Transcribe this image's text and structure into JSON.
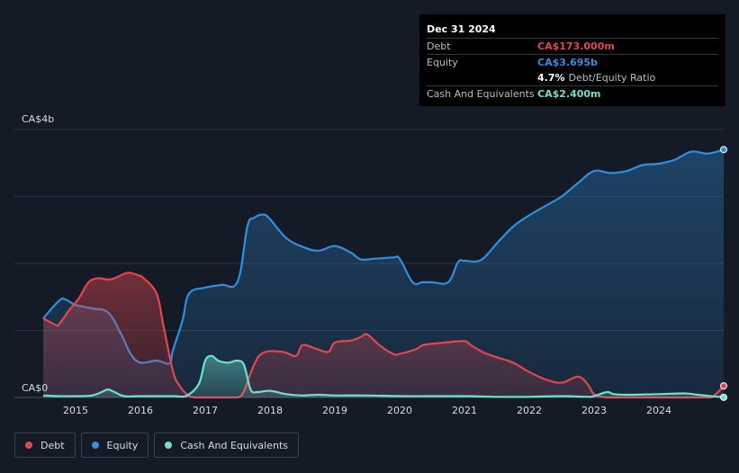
{
  "tooltip": {
    "date": "Dec 31 2024",
    "debt_label": "Debt",
    "debt_value": "CA$173.000m",
    "equity_label": "Equity",
    "equity_value": "CA$3.695b",
    "ratio_value": "4.7%",
    "ratio_label": "Debt/Equity Ratio",
    "cash_label": "Cash And Equivalents",
    "cash_value": "CA$2.400m"
  },
  "legend": {
    "debt": "Debt",
    "equity": "Equity",
    "cash": "Cash And Equivalents"
  },
  "colors": {
    "debt": "#e2474f",
    "equity": "#2f8fe0",
    "cash": "#6ee0cc",
    "background": "#151b26"
  },
  "chart_data": {
    "type": "area",
    "ytick_labels": [
      "CA$4b",
      "CA$0"
    ],
    "ylim": [
      0,
      4.0
    ],
    "y_unit": "CA$ billions",
    "xlim": [
      2014.5,
      2025.0
    ],
    "xtick_labels": [
      "2015",
      "2016",
      "2017",
      "2018",
      "2019",
      "2020",
      "2021",
      "2022",
      "2023",
      "2024"
    ],
    "xtick_values": [
      2015,
      2016,
      2017,
      2018,
      2019,
      2020,
      2021,
      2022,
      2023,
      2024
    ],
    "grid": true,
    "legend_position": "bottom-left",
    "series": [
      {
        "name": "Debt",
        "x": [
          2014.5,
          2014.7,
          2014.75,
          2014.9,
          2015.05,
          2015.2,
          2015.35,
          2015.5,
          2015.6,
          2015.8,
          2015.95,
          2016.05,
          2016.25,
          2016.35,
          2016.5,
          2016.6,
          2016.75,
          2016.85,
          2017.0,
          2017.25,
          2017.5,
          2017.6,
          2017.75,
          2017.9,
          2018.2,
          2018.4,
          2018.5,
          2018.7,
          2018.9,
          2019.0,
          2019.25,
          2019.4,
          2019.5,
          2019.7,
          2019.9,
          2020.0,
          2020.25,
          2020.35,
          2020.5,
          2020.7,
          2021.0,
          2021.1,
          2021.3,
          2021.5,
          2021.75,
          2022.0,
          2022.25,
          2022.5,
          2022.75,
          2022.9,
          2023.0,
          2023.2,
          2023.5,
          2024.0,
          2024.5,
          2024.8,
          2025.0
        ],
        "values": [
          1.18,
          1.08,
          1.1,
          1.3,
          1.48,
          1.72,
          1.78,
          1.76,
          1.78,
          1.86,
          1.83,
          1.78,
          1.55,
          1.1,
          0.4,
          0.18,
          0.02,
          0.0,
          0.0,
          0.0,
          0.0,
          0.1,
          0.48,
          0.67,
          0.68,
          0.62,
          0.78,
          0.73,
          0.68,
          0.82,
          0.85,
          0.9,
          0.94,
          0.77,
          0.65,
          0.65,
          0.72,
          0.78,
          0.8,
          0.82,
          0.84,
          0.78,
          0.67,
          0.6,
          0.52,
          0.38,
          0.27,
          0.22,
          0.31,
          0.2,
          0.05,
          0.0,
          0.0,
          0.0,
          0.0,
          0.0,
          0.173
        ]
      },
      {
        "name": "Equity",
        "x": [
          2014.5,
          2014.75,
          2014.85,
          2015.0,
          2015.25,
          2015.5,
          2015.7,
          2015.85,
          2016.0,
          2016.25,
          2016.45,
          2016.5,
          2016.65,
          2016.75,
          2017.0,
          2017.25,
          2017.5,
          2017.65,
          2017.75,
          2017.9,
          2018.0,
          2018.25,
          2018.5,
          2018.75,
          2019.0,
          2019.25,
          2019.4,
          2019.6,
          2019.9,
          2020.0,
          2020.2,
          2020.35,
          2020.5,
          2020.75,
          2020.9,
          2021.0,
          2021.25,
          2021.5,
          2021.75,
          2022.0,
          2022.25,
          2022.5,
          2022.75,
          2023.0,
          2023.25,
          2023.5,
          2023.75,
          2024.0,
          2024.25,
          2024.5,
          2024.75,
          2025.0
        ],
        "values": [
          1.18,
          1.45,
          1.46,
          1.38,
          1.33,
          1.27,
          0.95,
          0.65,
          0.52,
          0.55,
          0.51,
          0.7,
          1.15,
          1.55,
          1.64,
          1.68,
          1.73,
          2.55,
          2.68,
          2.73,
          2.66,
          2.38,
          2.25,
          2.19,
          2.26,
          2.16,
          2.06,
          2.07,
          2.09,
          2.07,
          1.72,
          1.72,
          1.72,
          1.72,
          2.02,
          2.04,
          2.05,
          2.3,
          2.55,
          2.72,
          2.86,
          3.0,
          3.2,
          3.38,
          3.35,
          3.38,
          3.47,
          3.49,
          3.55,
          3.67,
          3.64,
          3.7
        ]
      },
      {
        "name": "Cash And Equivalents",
        "x": [
          2014.5,
          2014.75,
          2015.0,
          2015.25,
          2015.4,
          2015.5,
          2015.6,
          2015.75,
          2016.0,
          2016.5,
          2016.7,
          2016.9,
          2017.0,
          2017.1,
          2017.2,
          2017.35,
          2017.5,
          2017.6,
          2017.7,
          2017.8,
          2018.0,
          2018.25,
          2018.5,
          2018.75,
          2019.0,
          2019.5,
          2020.0,
          2020.5,
          2021.0,
          2021.5,
          2022.0,
          2022.5,
          2022.9,
          2023.0,
          2023.2,
          2023.3,
          2023.5,
          2024.0,
          2024.4,
          2024.6,
          2025.0
        ],
        "values": [
          0.03,
          0.02,
          0.02,
          0.03,
          0.08,
          0.12,
          0.08,
          0.02,
          0.02,
          0.02,
          0.02,
          0.2,
          0.55,
          0.62,
          0.55,
          0.52,
          0.55,
          0.48,
          0.12,
          0.08,
          0.1,
          0.05,
          0.03,
          0.04,
          0.03,
          0.03,
          0.02,
          0.02,
          0.02,
          0.01,
          0.01,
          0.02,
          0.01,
          0.02,
          0.08,
          0.05,
          0.04,
          0.05,
          0.06,
          0.04,
          0.0024
        ]
      }
    ]
  }
}
